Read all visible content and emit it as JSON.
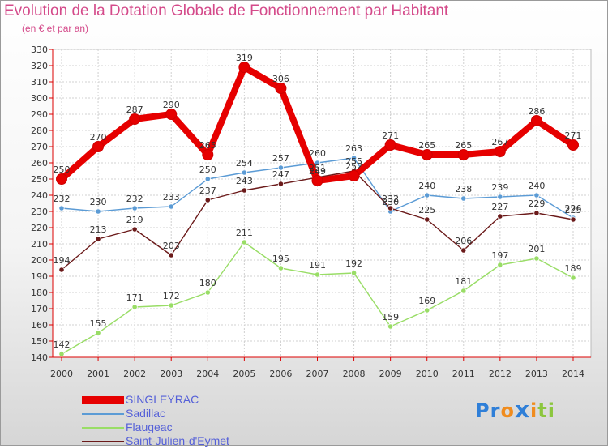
{
  "title": "Evolution de la Dotation Globale de Fonctionnement par Habitant",
  "subtitle": "(en € et par an)",
  "logo": {
    "text": "Proxiti",
    "letters": [
      "P",
      "r",
      "o",
      "x",
      "i",
      "t",
      "i"
    ],
    "letter_colors": [
      "#2f7fd8",
      "#2f7fd8",
      "#f08c1e",
      "#2f7fd8",
      "#f08c1e",
      "#8cc63e",
      "#8cc63e"
    ]
  },
  "chart_data": {
    "type": "line",
    "title": "Evolution de la Dotation Globale de Fonctionnement par Habitant",
    "subtitle": "(en € et par an)",
    "xlabel": "",
    "ylabel": "",
    "x": [
      "2000",
      "2001",
      "2002",
      "2003",
      "2004",
      "2005",
      "2006",
      "2007",
      "2008",
      "2009",
      "2010",
      "2011",
      "2012",
      "2013",
      "2014"
    ],
    "ylim": [
      140,
      330
    ],
    "yticks": [
      140,
      150,
      160,
      170,
      180,
      190,
      200,
      210,
      220,
      230,
      240,
      250,
      260,
      270,
      280,
      290,
      300,
      310,
      320,
      330
    ],
    "grid": true,
    "legend_position": "bottom-left",
    "series": [
      {
        "name": "SINGLEYRAC",
        "color": "#e60000",
        "values": [
          250,
          270,
          287,
          290,
          265,
          319,
          306,
          249,
          252,
          271,
          265,
          265,
          267,
          286,
          271
        ]
      },
      {
        "name": "Sadillac",
        "color": "#5b9bd5",
        "values": [
          232,
          230,
          232,
          233,
          250,
          254,
          257,
          260,
          263,
          230,
          240,
          238,
          239,
          240,
          226
        ]
      },
      {
        "name": "Flaugeac",
        "color": "#99dd66",
        "values": [
          142,
          155,
          171,
          172,
          180,
          211,
          195,
          191,
          192,
          159,
          169,
          181,
          197,
          201,
          189
        ]
      },
      {
        "name": "Saint-Julien-d'Eymet",
        "color": "#6b1a1a",
        "values": [
          194,
          213,
          219,
          203,
          237,
          243,
          247,
          251,
          255,
          232,
          225,
          206,
          227,
          229,
          225
        ]
      }
    ]
  }
}
